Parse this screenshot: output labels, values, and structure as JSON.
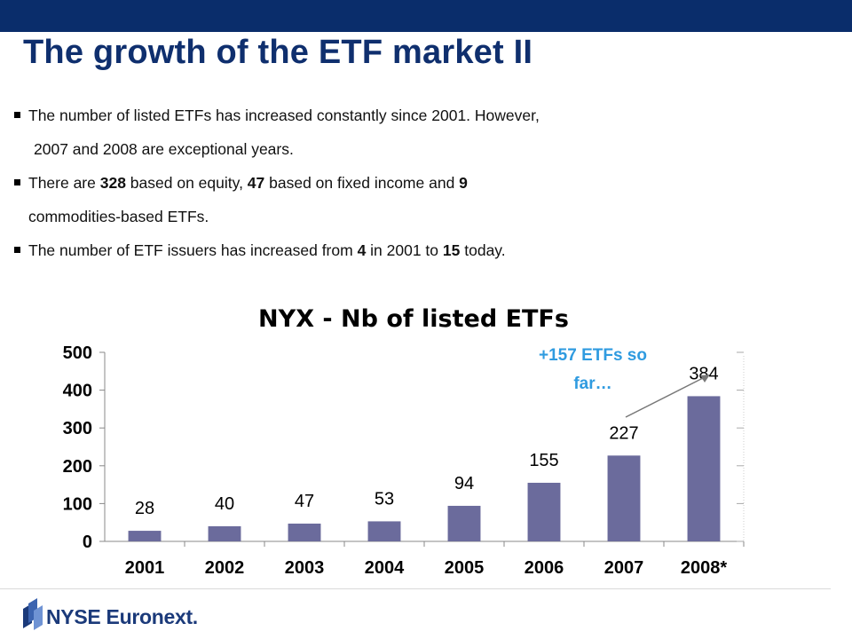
{
  "slide": {
    "title": "The growth of the ETF market II",
    "bullets": {
      "b1_line1": "The number of listed ETFs has increased constantly since 2001. However,",
      "b1_line2": "2007 and 2008 are exceptional years.",
      "b2_pre": "There are ",
      "b2_n1": "328",
      "b2_mid1": " based on equity, ",
      "b2_n2": "47",
      "b2_mid2": " based on fixed income and ",
      "b2_n3": "9",
      "b2_line2": "commodities-based ETFs.",
      "b3_pre": "The number of ETF issuers has increased from ",
      "b3_n1": "4",
      "b3_mid": " in 2001 to ",
      "b3_n2": "15",
      "b3_post": " today."
    }
  },
  "chart_data": {
    "type": "bar",
    "title": "NYX - Nb of listed ETFs",
    "categories": [
      "2001",
      "2002",
      "2003",
      "2004",
      "2005",
      "2006",
      "2007",
      "2008*"
    ],
    "values": [
      28,
      40,
      47,
      53,
      94,
      155,
      227,
      384
    ],
    "ylim": [
      0,
      500
    ],
    "yticks": [
      0,
      100,
      200,
      300,
      400,
      500
    ],
    "grid": false,
    "bar_color": "#6b6b9c",
    "annotation": {
      "text_line1": "+157 ETFs so",
      "text_line2": "far…",
      "color": "#2f9be0"
    }
  },
  "logo": {
    "text": "NYSE Euronext."
  },
  "colors": {
    "top_bar": "#0a2d6b",
    "title": "#0f2f6e"
  }
}
